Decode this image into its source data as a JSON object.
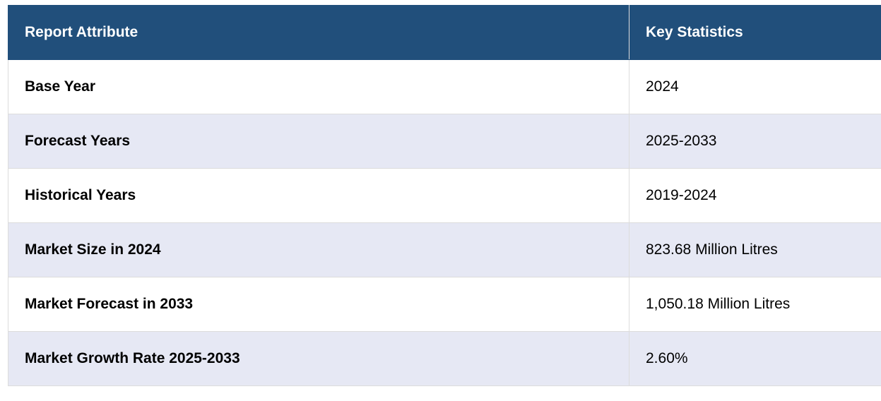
{
  "header": {
    "col1": "Report Attribute",
    "col2": "Key Statistics"
  },
  "rows": [
    {
      "attribute": "Base Year",
      "value": "2024"
    },
    {
      "attribute": "Forecast Years",
      "value": "2025-2033"
    },
    {
      "attribute": "Historical Years",
      "value": "2019-2024"
    },
    {
      "attribute": "Market Size in 2024",
      "value": "823.68 Million Litres"
    },
    {
      "attribute": "Market Forecast in 2033",
      "value": "1,050.18 Million Litres"
    },
    {
      "attribute": "Market Growth Rate 2025-2033",
      "value": "2.60%"
    }
  ],
  "colors": {
    "header_bg": "#214f7b",
    "header_text": "#ffffff",
    "stripe_bg": "#e6e8f4"
  }
}
